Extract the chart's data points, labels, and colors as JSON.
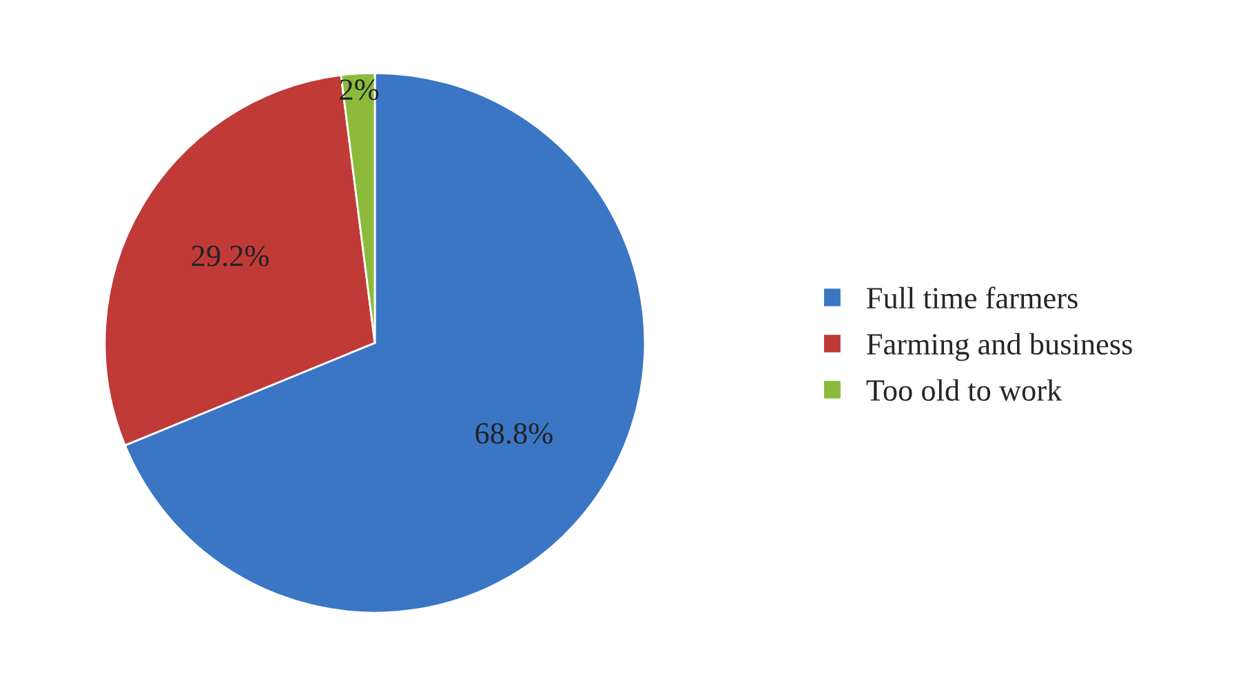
{
  "chart_data": {
    "type": "pie",
    "categories": [
      "Full time farmers",
      "Farming and business",
      "Too old to work"
    ],
    "values": [
      68.8,
      29.2,
      2
    ],
    "colors": [
      "#3a76c4",
      "#c03a37",
      "#8cbb3c"
    ],
    "value_labels": [
      "68.8%",
      "29.2%",
      "2%"
    ],
    "legend": "right"
  }
}
